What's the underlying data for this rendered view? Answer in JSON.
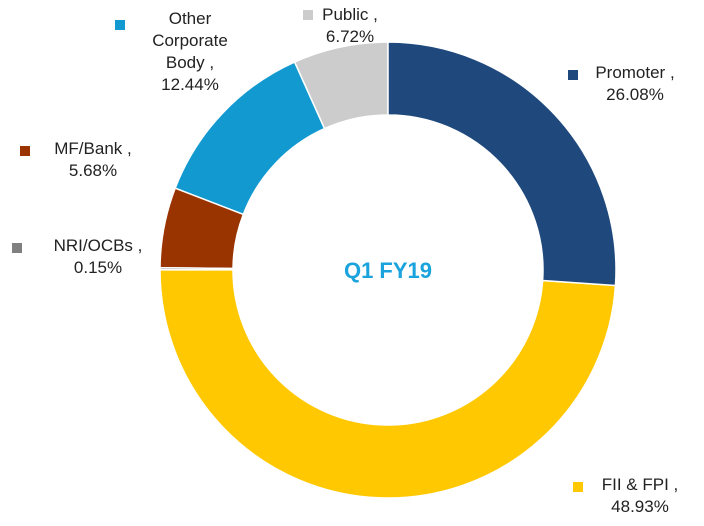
{
  "chart_data": {
    "type": "donut",
    "title": "Q1 FY19",
    "categories": [
      "Promoter ,",
      "FII & FPI ,",
      "NRI/OCBs ,",
      "MF/Bank ,",
      "Other Corporate Body ,",
      "Public ,"
    ],
    "values": [
      26.08,
      48.93,
      0.15,
      5.68,
      12.44,
      6.72
    ],
    "value_labels": [
      "26.08%",
      "48.93%",
      "0.15%",
      "5.68%",
      "12.44%",
      "6.72%"
    ],
    "colors": [
      "#1f497d",
      "#ffc800",
      "#808080",
      "#993300",
      "#1199d0",
      "#cccccc"
    ]
  }
}
